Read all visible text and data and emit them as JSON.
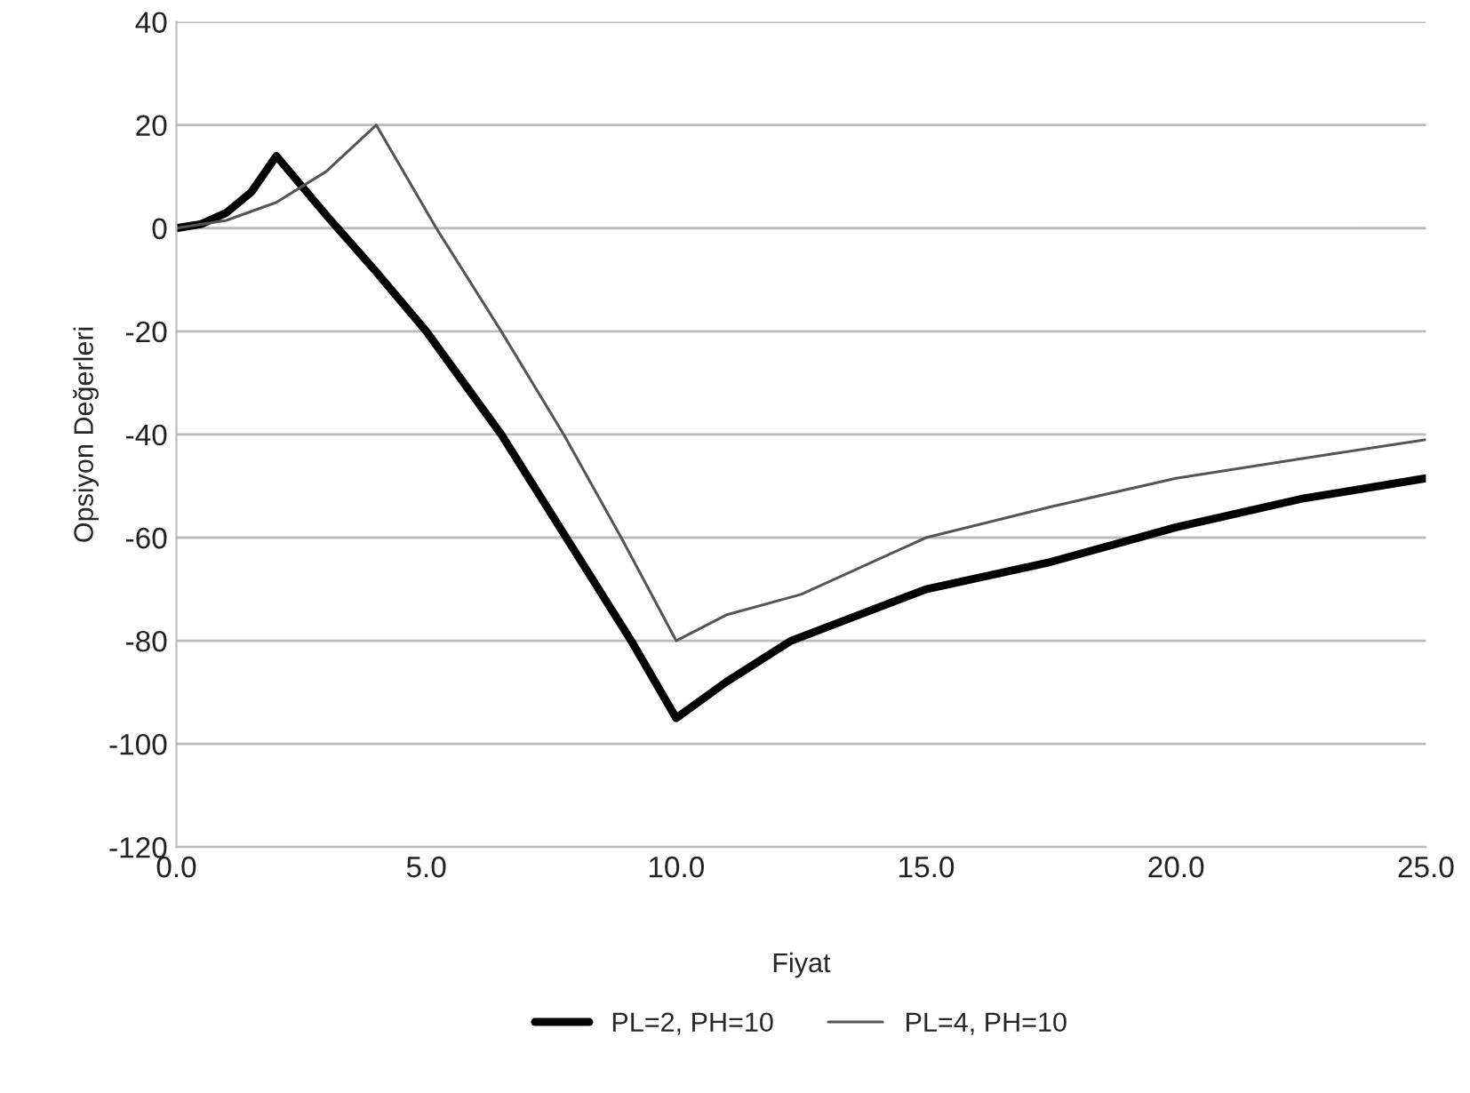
{
  "chart_data": {
    "type": "line",
    "xlabel": "Fiyat",
    "ylabel": "Opsiyon Değerleri",
    "xlim": [
      0,
      25
    ],
    "xticks": [
      {
        "value": 0,
        "label": "0.0"
      },
      {
        "value": 5,
        "label": "5.0"
      },
      {
        "value": 10,
        "label": "10.0"
      },
      {
        "value": 15,
        "label": "15.0"
      },
      {
        "value": 20,
        "label": "20.0"
      },
      {
        "value": 25,
        "label": "25.0"
      }
    ],
    "ylim": [
      -120,
      40
    ],
    "yticks": [
      -120,
      -100,
      -80,
      -60,
      -40,
      -20,
      0,
      20,
      40
    ],
    "grid": "y",
    "legend": "bottom",
    "marker": "none",
    "line_style": "solid",
    "series": [
      {
        "name": "PL=2, PH=10",
        "color": "#000000",
        "x": [
          0,
          0.5,
          1,
          1.5,
          2,
          3,
          4,
          5,
          6.5,
          7.8,
          9.1,
          10,
          11,
          12.3,
          15,
          17.5,
          20,
          22.5,
          25
        ],
        "values": [
          0,
          0.8,
          3,
          7,
          14,
          2.5,
          -8.5,
          -20,
          -40,
          -60,
          -80,
          -95,
          -88,
          -80,
          -70,
          -64.7,
          -58,
          -52.5,
          -48.5
        ]
      },
      {
        "name": "PL=4, PH=10",
        "color": "#555555",
        "x": [
          0,
          1,
          2,
          3,
          4,
          5.2,
          6.5,
          7.75,
          8.9,
          10,
          11,
          12.5,
          15,
          17.5,
          20,
          22.5,
          25
        ],
        "values": [
          0,
          1.5,
          5,
          11,
          20,
          0,
          -20,
          -40,
          -60,
          -80,
          -75,
          -71,
          -60,
          -54,
          -48.5,
          -44.7,
          -41
        ]
      }
    ]
  }
}
